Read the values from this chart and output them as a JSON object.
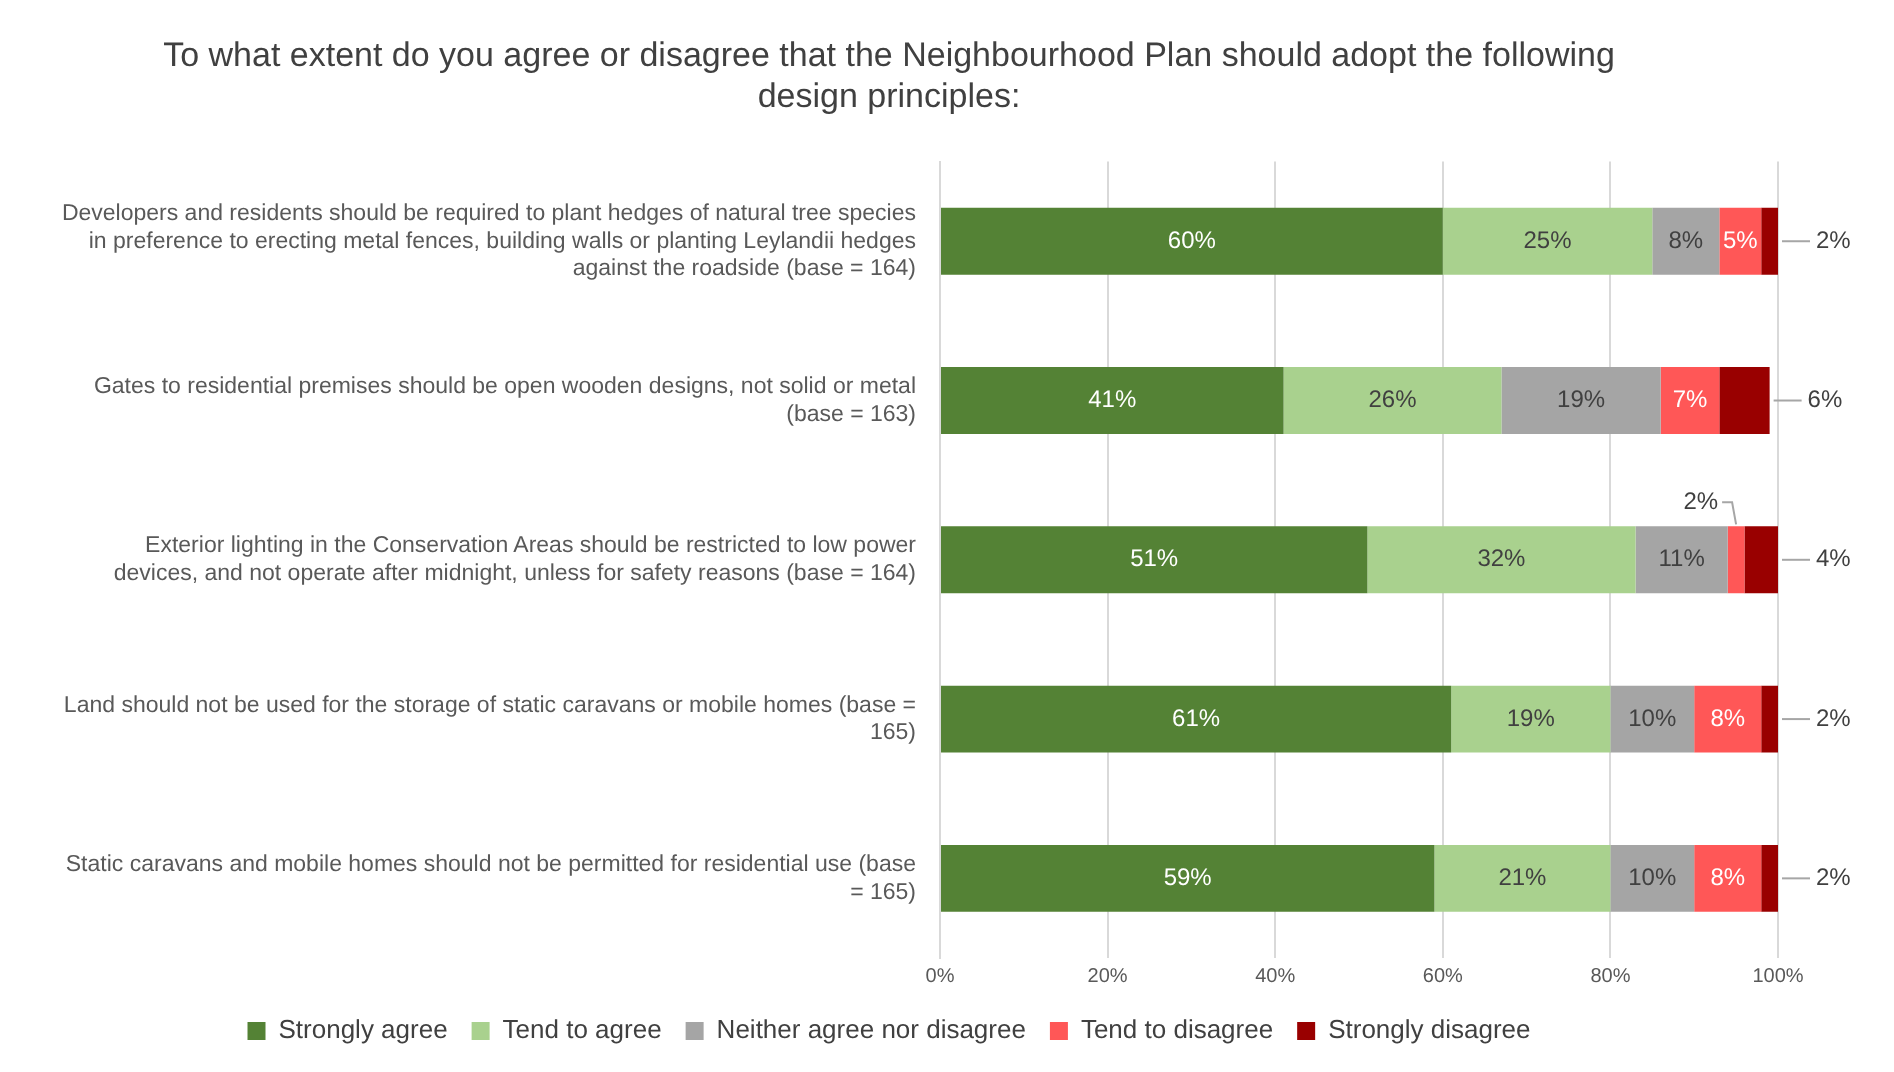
{
  "chart_data": {
    "type": "bar",
    "orientation": "horizontal",
    "stacked": true,
    "title": "To what extent do you agree or disagree that the Neighbourhood Plan should adopt the following design principles:",
    "categories": [
      "Developers and residents should be required to plant hedges of natural tree species in preference to erecting metal fences, building walls or planting Leylandii hedges against the roadside (base = 164)",
      "Gates to residential premises should be open wooden designs, not solid or metal (base = 163)",
      "Exterior lighting in the Conservation Areas should be restricted to low power devices, and not operate after midnight, unless for safety reasons (base = 164)",
      "Land should not be used for the storage of static caravans or mobile homes (base = 165)",
      "Static caravans and mobile homes should not be permitted for residential use (base = 165)"
    ],
    "series": [
      {
        "name": "Strongly agree",
        "color": "#548235",
        "values": [
          60,
          41,
          51,
          61,
          59
        ],
        "value_labels": [
          "60%",
          "41%",
          "51%",
          "61%",
          "59%"
        ]
      },
      {
        "name": "Tend to agree",
        "color": "#a9d18e",
        "values": [
          25,
          26,
          32,
          19,
          21
        ],
        "value_labels": [
          "25%",
          "26%",
          "32%",
          "19%",
          "21%"
        ]
      },
      {
        "name": "Neither agree nor disagree",
        "color": "#a5a5a5",
        "values": [
          8,
          19,
          11,
          10,
          10
        ],
        "value_labels": [
          "8%",
          "19%",
          "11%",
          "10%",
          "10%"
        ]
      },
      {
        "name": "Tend to disagree",
        "color": "#ff5757",
        "values": [
          5,
          7,
          2,
          8,
          8
        ],
        "value_labels": [
          "5%",
          "7%",
          "2%",
          "8%",
          "8%"
        ]
      },
      {
        "name": "Strongly disagree",
        "color": "#990000",
        "values": [
          2,
          6,
          4,
          2,
          2
        ],
        "value_labels": [
          "2%",
          "6%",
          "4%",
          "2%",
          "2%"
        ]
      }
    ],
    "xlim": [
      0,
      100
    ],
    "xticks": [
      {
        "value": 0,
        "label": "0%"
      },
      {
        "value": 20,
        "label": "20%"
      },
      {
        "value": 40,
        "label": "40%"
      },
      {
        "value": 60,
        "label": "60%"
      },
      {
        "value": 80,
        "label": "80%"
      },
      {
        "value": 100,
        "label": "100%"
      }
    ],
    "grid": "x",
    "legend": "bottom"
  }
}
